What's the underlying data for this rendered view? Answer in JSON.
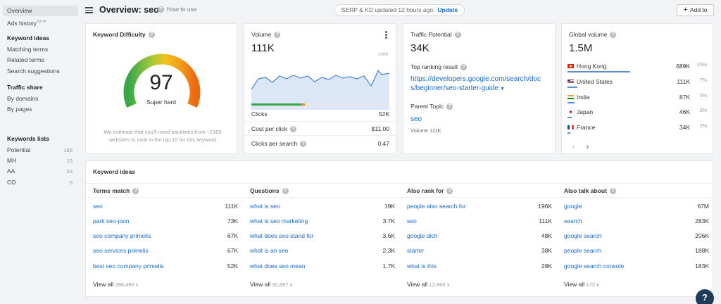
{
  "sidebar": {
    "overview": "Overview",
    "ads_history": "Ads history",
    "ads_history_badge": "BETA",
    "keyword_ideas_head": "Keyword ideas",
    "matching_terms": "Matching terms",
    "related_terms": "Related terms",
    "search_suggestions": "Search suggestions",
    "traffic_share_head": "Traffic share",
    "by_domains": "By domains",
    "by_pages": "By pages",
    "keywords_lists_head": "Keywords lists",
    "lists": [
      {
        "name": "Potential",
        "count": "186"
      },
      {
        "name": "MH",
        "count": "16"
      },
      {
        "name": "AA",
        "count": "53"
      },
      {
        "name": "CO",
        "count": "6"
      }
    ]
  },
  "header": {
    "title": "Overview: seo",
    "how_to_use": "How to use",
    "serp_status": "SERP & KD updated 12 hours ago.",
    "update_link": "Update",
    "add_to": "Add to"
  },
  "kd": {
    "title": "Keyword Difficulty",
    "value": "97",
    "label": "Super hard",
    "note": "We estimate that you'll need backlinks from ~2185 websites to rank in the top 10 for this keyword"
  },
  "volume": {
    "title": "Volume",
    "value": "111K",
    "chart_max_label": "148K",
    "rows": [
      {
        "label": "Clicks",
        "value": "52K"
      },
      {
        "label": "Cost per click",
        "value": "$11.00"
      },
      {
        "label": "Clicks per search",
        "value": "0.47"
      }
    ]
  },
  "traffic_potential": {
    "title": "Traffic Potential",
    "value": "34K",
    "top_ranking_label": "Top ranking result",
    "top_ranking_url": "https://developers.google.com/search/docs/beginner/seo-starter-guide",
    "parent_topic_label": "Parent Topic",
    "parent_topic": "seo",
    "parent_volume": "Volume 111K"
  },
  "global_volume": {
    "title": "Global volume",
    "value": "1.5M",
    "countries": [
      {
        "name": "Hong Kong",
        "value": "689K",
        "pct": "45%"
      },
      {
        "name": "United States",
        "value": "111K",
        "pct": "7%"
      },
      {
        "name": "India",
        "value": "87K",
        "pct": "5%"
      },
      {
        "name": "Japan",
        "value": "46K",
        "pct": "3%"
      },
      {
        "name": "France",
        "value": "34K",
        "pct": "2%"
      }
    ],
    "prev": "‹",
    "next": "›"
  },
  "keyword_ideas": {
    "title": "Keyword ideas",
    "columns": [
      {
        "head": "Terms match",
        "rows": [
          {
            "kw": "seo",
            "v": "111K"
          },
          {
            "kw": "park seo-joon",
            "v": "73K"
          },
          {
            "kw": "seo company primelis",
            "v": "67K"
          },
          {
            "kw": "seo services primelis",
            "v": "67K"
          },
          {
            "kw": "best seo company primelis",
            "v": "52K"
          }
        ],
        "view_all": "View all",
        "view_count": "396,490"
      },
      {
        "head": "Questions",
        "rows": [
          {
            "kw": "what is seo",
            "v": "19K"
          },
          {
            "kw": "what is seo marketing",
            "v": "3.7K"
          },
          {
            "kw": "what does seo stand for",
            "v": "3.6K"
          },
          {
            "kw": "what is an seo",
            "v": "2.3K"
          },
          {
            "kw": "what does seo mean",
            "v": "1.7K"
          }
        ],
        "view_all": "View all",
        "view_count": "32,667"
      },
      {
        "head": "Also rank for",
        "rows": [
          {
            "kw": "people also search for",
            "v": "196K"
          },
          {
            "kw": "seo",
            "v": "111K"
          },
          {
            "kw": "google dich",
            "v": "48K"
          },
          {
            "kw": "starter",
            "v": "38K"
          },
          {
            "kw": "what is this",
            "v": "28K"
          }
        ],
        "view_all": "View all",
        "view_count": "12,869"
      },
      {
        "head": "Also talk about",
        "rows": [
          {
            "kw": "google",
            "v": "67M"
          },
          {
            "kw": "search",
            "v": "283K"
          },
          {
            "kw": "google search",
            "v": "206K"
          },
          {
            "kw": "people search",
            "v": "188K"
          },
          {
            "kw": "google search console",
            "v": "183K"
          }
        ],
        "view_all": "View all",
        "view_count": "173"
      }
    ]
  },
  "help": "?"
}
